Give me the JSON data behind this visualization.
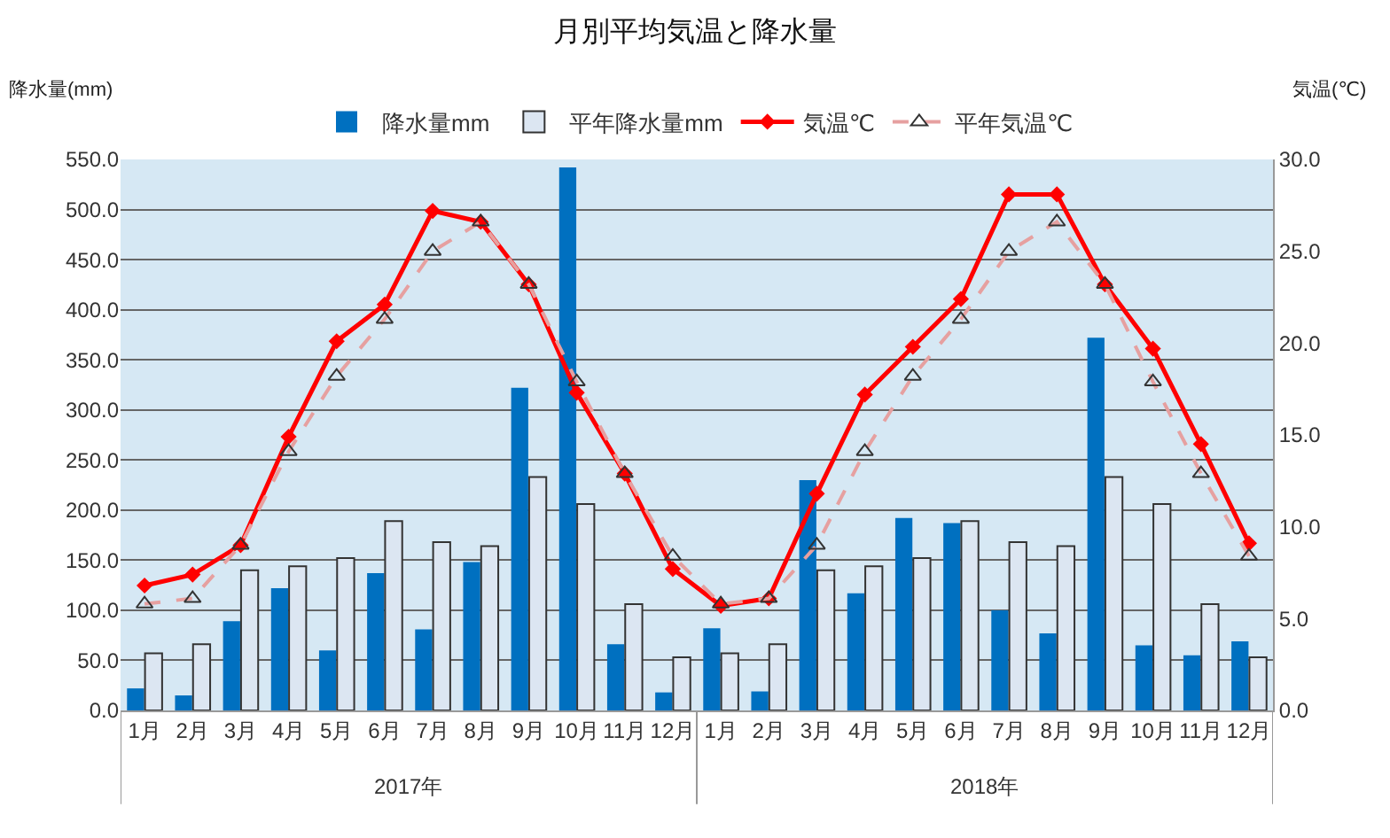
{
  "chart_data": {
    "type": "bar",
    "title": "月別平均気温と降水量",
    "categories": [
      "1月",
      "2月",
      "3月",
      "4月",
      "5月",
      "6月",
      "7月",
      "8月",
      "9月",
      "10月",
      "11月",
      "12月",
      "1月",
      "2月",
      "3月",
      "4月",
      "5月",
      "6月",
      "7月",
      "8月",
      "9月",
      "10月",
      "11月",
      "12月"
    ],
    "ylabel": "降水量(mm)",
    "y2label": "気温(℃)",
    "annotations": [
      "2017年",
      "2018年"
    ],
    "series": [
      {
        "name": "降水量mm",
        "color": "#0070c0",
        "values": [
          22,
          15,
          89,
          122,
          60,
          137,
          81,
          148,
          322,
          542,
          66,
          18,
          82,
          19,
          230,
          117,
          192,
          187,
          100,
          77,
          372,
          65,
          55,
          69
        ]
      },
      {
        "name": "平年降水量mm",
        "color": "#dce6f2",
        "values": [
          57,
          66,
          140,
          144,
          152,
          189,
          168,
          164,
          233,
          206,
          106,
          53,
          57,
          66,
          140,
          144,
          152,
          189,
          168,
          164,
          233,
          206,
          106,
          53
        ]
      },
      {
        "name": "気温℃",
        "type": "line",
        "axis": "y2",
        "color": "#ff0000",
        "marker": "diamond",
        "line_style": "solid",
        "values": [
          6.8,
          7.4,
          9.0,
          14.9,
          20.1,
          22.1,
          27.2,
          26.6,
          23.2,
          17.3,
          12.9,
          7.7,
          5.7,
          6.1,
          11.8,
          17.2,
          19.8,
          22.4,
          28.1,
          28.1,
          23.2,
          19.7,
          14.5,
          9.1
        ]
      },
      {
        "name": "平年気温℃",
        "type": "line",
        "axis": "y2",
        "color": "#e6a0a0",
        "marker": "triangle",
        "line_style": "dashed",
        "values": [
          5.8,
          6.1,
          9.0,
          14.1,
          18.2,
          21.3,
          25.0,
          26.6,
          23.2,
          17.9,
          12.9,
          8.4,
          5.8,
          6.1,
          9.0,
          14.1,
          18.2,
          21.3,
          25.0,
          26.6,
          23.2,
          17.9,
          12.9,
          8.4
        ]
      }
    ],
    "ylim": [
      0,
      550
    ],
    "yticks": [
      {
        "value": 0,
        "label": "0.0"
      },
      {
        "value": 50,
        "label": "50.0"
      },
      {
        "value": 100,
        "label": "100.0"
      },
      {
        "value": 150,
        "label": "150.0"
      },
      {
        "value": 200,
        "label": "200.0"
      },
      {
        "value": 250,
        "label": "250.0"
      },
      {
        "value": 300,
        "label": "300.0"
      },
      {
        "value": 350,
        "label": "350.0"
      },
      {
        "value": 400,
        "label": "400.0"
      },
      {
        "value": 450,
        "label": "450.0"
      },
      {
        "value": 500,
        "label": "500.0"
      },
      {
        "value": 550,
        "label": "550.0"
      }
    ],
    "y2lim": [
      0,
      30
    ],
    "y2ticks": [
      {
        "value": 0,
        "label": "0.0"
      },
      {
        "value": 5,
        "label": "5.0"
      },
      {
        "value": 10,
        "label": "10.0"
      },
      {
        "value": 15,
        "label": "15.0"
      },
      {
        "value": 20,
        "label": "20.0"
      },
      {
        "value": 25,
        "label": "25.0"
      },
      {
        "value": 30,
        "label": "30.0"
      }
    ],
    "grid": "y",
    "legend": "top"
  }
}
